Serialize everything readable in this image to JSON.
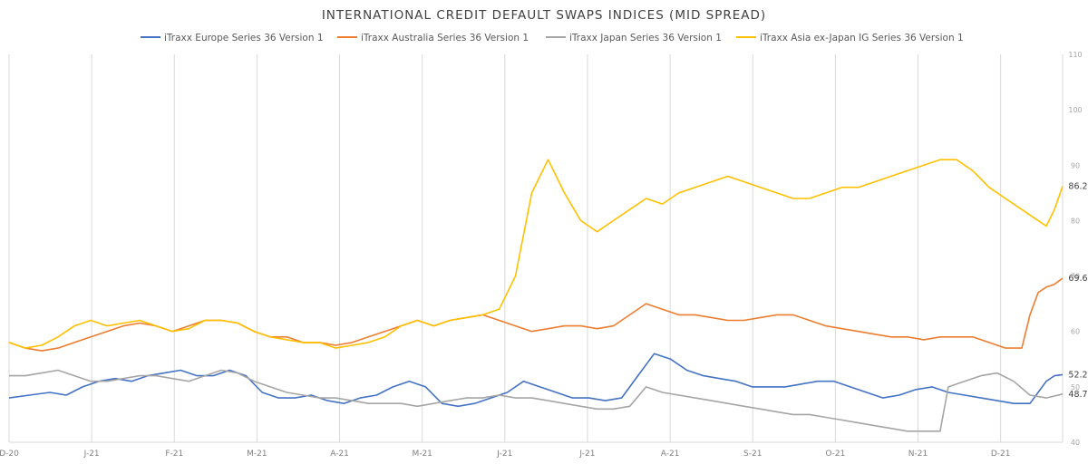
{
  "chart_data": {
    "type": "line",
    "title": "INTERNATIONAL CREDIT DEFAULT SWAPS INDICES (MID SPREAD)",
    "xlabel": "",
    "ylabel": "",
    "y_axis_side": "right",
    "ylim": [
      40,
      110
    ],
    "yticks": [
      40,
      50,
      60,
      70,
      80,
      90,
      100,
      110
    ],
    "grid": "vertical",
    "legend": "top",
    "x_tick_labels": [
      "D-20",
      "J-21",
      "F-21",
      "M-21",
      "A-21",
      "M-21",
      "J-21",
      "J-21",
      "A-21",
      "S-21",
      "O-21",
      "N-21",
      "D-21"
    ],
    "x_count": 258,
    "series": [
      {
        "name": "iTraxx Europe Series 36 Version 1",
        "color": "#4472c4",
        "end_label": "52.2",
        "points": [
          [
            0,
            48
          ],
          [
            5,
            48.5
          ],
          [
            10,
            49
          ],
          [
            14,
            48.5
          ],
          [
            18,
            50
          ],
          [
            22,
            51
          ],
          [
            26,
            51.5
          ],
          [
            30,
            51
          ],
          [
            34,
            52
          ],
          [
            38,
            52.5
          ],
          [
            42,
            53
          ],
          [
            46,
            52
          ],
          [
            50,
            52
          ],
          [
            54,
            53
          ],
          [
            58,
            52
          ],
          [
            62,
            49
          ],
          [
            66,
            48
          ],
          [
            70,
            48
          ],
          [
            74,
            48.5
          ],
          [
            78,
            47.5
          ],
          [
            82,
            47
          ],
          [
            86,
            48
          ],
          [
            90,
            48.5
          ],
          [
            94,
            50
          ],
          [
            98,
            51
          ],
          [
            102,
            50
          ],
          [
            106,
            47
          ],
          [
            110,
            46.5
          ],
          [
            114,
            47
          ],
          [
            118,
            48
          ],
          [
            122,
            49
          ],
          [
            126,
            51
          ],
          [
            130,
            50
          ],
          [
            134,
            49
          ],
          [
            138,
            48
          ],
          [
            142,
            48
          ],
          [
            146,
            47.5
          ],
          [
            150,
            48
          ],
          [
            154,
            52
          ],
          [
            158,
            56
          ],
          [
            162,
            55
          ],
          [
            166,
            53
          ],
          [
            170,
            52
          ],
          [
            174,
            51.5
          ],
          [
            178,
            51
          ],
          [
            182,
            50
          ],
          [
            186,
            50
          ],
          [
            190,
            50
          ],
          [
            194,
            50.5
          ],
          [
            198,
            51
          ],
          [
            202,
            51
          ],
          [
            206,
            50
          ],
          [
            210,
            49
          ],
          [
            214,
            48
          ],
          [
            218,
            48.5
          ],
          [
            222,
            49.5
          ],
          [
            226,
            50
          ],
          [
            230,
            49
          ],
          [
            234,
            48.5
          ],
          [
            238,
            48
          ],
          [
            242,
            47.5
          ],
          [
            246,
            47
          ],
          [
            250,
            47
          ],
          [
            252,
            49
          ],
          [
            254,
            51
          ],
          [
            256,
            52
          ],
          [
            258,
            52.2
          ]
        ]
      },
      {
        "name": "iTraxx Australia Series 36 Version 1",
        "color": "#ed7d31",
        "end_label": "69.6",
        "points": [
          [
            0,
            58
          ],
          [
            4,
            57
          ],
          [
            8,
            56.5
          ],
          [
            12,
            57
          ],
          [
            16,
            58
          ],
          [
            20,
            59
          ],
          [
            24,
            60
          ],
          [
            28,
            61
          ],
          [
            32,
            61.5
          ],
          [
            36,
            61
          ],
          [
            40,
            60
          ],
          [
            44,
            61
          ],
          [
            48,
            62
          ],
          [
            52,
            62
          ],
          [
            56,
            61.5
          ],
          [
            60,
            60
          ],
          [
            64,
            59
          ],
          [
            68,
            59
          ],
          [
            72,
            58
          ],
          [
            76,
            58
          ],
          [
            80,
            57.5
          ],
          [
            84,
            58
          ],
          [
            88,
            59
          ],
          [
            92,
            60
          ],
          [
            96,
            61
          ],
          [
            100,
            62
          ],
          [
            104,
            61
          ],
          [
            108,
            62
          ],
          [
            112,
            62.5
          ],
          [
            116,
            63
          ],
          [
            120,
            62
          ],
          [
            124,
            61
          ],
          [
            128,
            60
          ],
          [
            132,
            60.5
          ],
          [
            136,
            61
          ],
          [
            140,
            61
          ],
          [
            144,
            60.5
          ],
          [
            148,
            61
          ],
          [
            152,
            63
          ],
          [
            156,
            65
          ],
          [
            160,
            64
          ],
          [
            164,
            63
          ],
          [
            168,
            63
          ],
          [
            172,
            62.5
          ],
          [
            176,
            62
          ],
          [
            180,
            62
          ],
          [
            184,
            62.5
          ],
          [
            188,
            63
          ],
          [
            192,
            63
          ],
          [
            196,
            62
          ],
          [
            200,
            61
          ],
          [
            204,
            60.5
          ],
          [
            208,
            60
          ],
          [
            212,
            59.5
          ],
          [
            216,
            59
          ],
          [
            220,
            59
          ],
          [
            224,
            58.5
          ],
          [
            228,
            59
          ],
          [
            232,
            59
          ],
          [
            236,
            59
          ],
          [
            240,
            58
          ],
          [
            244,
            57
          ],
          [
            248,
            57
          ],
          [
            250,
            63
          ],
          [
            252,
            67
          ],
          [
            254,
            68
          ],
          [
            256,
            68.5
          ],
          [
            258,
            69.6
          ]
        ]
      },
      {
        "name": "iTraxx Japan Series 36 Version 1",
        "color": "#a5a5a5",
        "end_label": "48.7",
        "points": [
          [
            0,
            52
          ],
          [
            4,
            52
          ],
          [
            8,
            52.5
          ],
          [
            12,
            53
          ],
          [
            16,
            52
          ],
          [
            20,
            51
          ],
          [
            24,
            51
          ],
          [
            28,
            51.5
          ],
          [
            32,
            52
          ],
          [
            36,
            52
          ],
          [
            40,
            51.5
          ],
          [
            44,
            51
          ],
          [
            48,
            52
          ],
          [
            52,
            53
          ],
          [
            56,
            52.5
          ],
          [
            60,
            51
          ],
          [
            64,
            50
          ],
          [
            68,
            49
          ],
          [
            72,
            48.5
          ],
          [
            76,
            48
          ],
          [
            80,
            48
          ],
          [
            84,
            47.5
          ],
          [
            88,
            47
          ],
          [
            92,
            47
          ],
          [
            96,
            47
          ],
          [
            100,
            46.5
          ],
          [
            104,
            47
          ],
          [
            108,
            47.5
          ],
          [
            112,
            48
          ],
          [
            116,
            48
          ],
          [
            120,
            48.5
          ],
          [
            124,
            48
          ],
          [
            128,
            48
          ],
          [
            132,
            47.5
          ],
          [
            136,
            47
          ],
          [
            140,
            46.5
          ],
          [
            144,
            46
          ],
          [
            148,
            46
          ],
          [
            152,
            46.5
          ],
          [
            156,
            50
          ],
          [
            160,
            49
          ],
          [
            164,
            48.5
          ],
          [
            168,
            48
          ],
          [
            172,
            47.5
          ],
          [
            176,
            47
          ],
          [
            180,
            46.5
          ],
          [
            184,
            46
          ],
          [
            188,
            45.5
          ],
          [
            192,
            45
          ],
          [
            196,
            45
          ],
          [
            200,
            44.5
          ],
          [
            204,
            44
          ],
          [
            208,
            43.5
          ],
          [
            212,
            43
          ],
          [
            216,
            42.5
          ],
          [
            220,
            42
          ],
          [
            224,
            42
          ],
          [
            228,
            42
          ],
          [
            230,
            50
          ],
          [
            234,
            51
          ],
          [
            238,
            52
          ],
          [
            242,
            52.5
          ],
          [
            246,
            51
          ],
          [
            250,
            48.5
          ],
          [
            254,
            48
          ],
          [
            258,
            48.7
          ]
        ]
      },
      {
        "name": "iTraxx Asia ex-Japan IG Series 36 Version 1",
        "color": "#ffc000",
        "end_label": "86.2",
        "points": [
          [
            0,
            58
          ],
          [
            4,
            57
          ],
          [
            8,
            57.5
          ],
          [
            12,
            59
          ],
          [
            16,
            61
          ],
          [
            20,
            62
          ],
          [
            24,
            61
          ],
          [
            28,
            61.5
          ],
          [
            32,
            62
          ],
          [
            36,
            61
          ],
          [
            40,
            60
          ],
          [
            44,
            60.5
          ],
          [
            48,
            62
          ],
          [
            52,
            62
          ],
          [
            56,
            61.5
          ],
          [
            60,
            60
          ],
          [
            64,
            59
          ],
          [
            68,
            58.5
          ],
          [
            72,
            58
          ],
          [
            76,
            58
          ],
          [
            80,
            57
          ],
          [
            84,
            57.5
          ],
          [
            88,
            58
          ],
          [
            92,
            59
          ],
          [
            96,
            61
          ],
          [
            100,
            62
          ],
          [
            104,
            61
          ],
          [
            108,
            62
          ],
          [
            112,
            62.5
          ],
          [
            116,
            63
          ],
          [
            120,
            64
          ],
          [
            124,
            70
          ],
          [
            128,
            85
          ],
          [
            132,
            91
          ],
          [
            136,
            85
          ],
          [
            140,
            80
          ],
          [
            144,
            78
          ],
          [
            148,
            80
          ],
          [
            152,
            82
          ],
          [
            156,
            84
          ],
          [
            160,
            83
          ],
          [
            164,
            85
          ],
          [
            168,
            86
          ],
          [
            172,
            87
          ],
          [
            176,
            88
          ],
          [
            180,
            87
          ],
          [
            184,
            86
          ],
          [
            188,
            85
          ],
          [
            192,
            84
          ],
          [
            196,
            84
          ],
          [
            200,
            85
          ],
          [
            204,
            86
          ],
          [
            208,
            86
          ],
          [
            212,
            87
          ],
          [
            216,
            88
          ],
          [
            220,
            89
          ],
          [
            224,
            90
          ],
          [
            228,
            91
          ],
          [
            232,
            91
          ],
          [
            236,
            89
          ],
          [
            240,
            86
          ],
          [
            244,
            84
          ],
          [
            248,
            82
          ],
          [
            252,
            80
          ],
          [
            254,
            79
          ],
          [
            256,
            82
          ],
          [
            258,
            86.2
          ]
        ]
      }
    ]
  }
}
